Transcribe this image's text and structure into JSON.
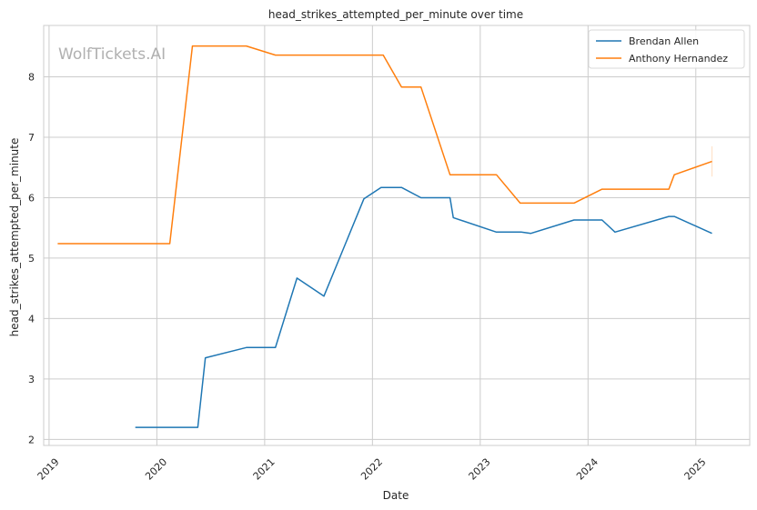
{
  "chart_data": {
    "type": "line",
    "title": "head_strikes_attempted_per_minute over time",
    "xlabel": "Date",
    "ylabel": "head_strikes_attempted_per_minute",
    "watermark": "WolfTickets.AI",
    "xlim": [
      2018.95,
      2025.5
    ],
    "ylim": [
      1.9,
      8.85
    ],
    "x_ticks": [
      2019,
      2020,
      2021,
      2022,
      2023,
      2024,
      2025
    ],
    "x_tick_labels": [
      "2019",
      "2020",
      "2021",
      "2022",
      "2023",
      "2024",
      "2025"
    ],
    "y_ticks": [
      2,
      3,
      4,
      5,
      6,
      7,
      8
    ],
    "y_tick_labels": [
      "2",
      "3",
      "4",
      "5",
      "6",
      "7",
      "8"
    ],
    "grid": true,
    "legend_position": "top-right",
    "series": [
      {
        "name": "Brendan Allen",
        "color": "#1f77b4",
        "x": [
          2019.8,
          2020.38,
          2020.45,
          2020.83,
          2021.1,
          2021.3,
          2021.55,
          2021.92,
          2022.08,
          2022.27,
          2022.45,
          2022.72,
          2022.75,
          2023.15,
          2023.38,
          2023.47,
          2023.87,
          2024.13,
          2024.25,
          2024.75,
          2024.8,
          2025.15
        ],
        "y": [
          2.2,
          2.2,
          3.35,
          3.52,
          3.52,
          4.67,
          4.37,
          5.98,
          6.17,
          6.17,
          6.0,
          6.0,
          5.67,
          5.43,
          5.43,
          5.41,
          5.63,
          5.63,
          5.43,
          5.69,
          5.69,
          5.41
        ]
      },
      {
        "name": "Anthony Hernandez",
        "color": "#ff7f0e",
        "x": [
          2019.08,
          2020.12,
          2020.33,
          2020.83,
          2021.1,
          2022.1,
          2022.27,
          2022.45,
          2022.72,
          2023.15,
          2023.37,
          2023.87,
          2024.13,
          2024.75,
          2024.8,
          2025.15
        ],
        "y": [
          5.24,
          5.24,
          8.51,
          8.51,
          8.36,
          8.36,
          7.83,
          7.83,
          6.38,
          6.38,
          5.91,
          5.91,
          6.14,
          6.14,
          6.38,
          6.6
        ]
      }
    ]
  }
}
